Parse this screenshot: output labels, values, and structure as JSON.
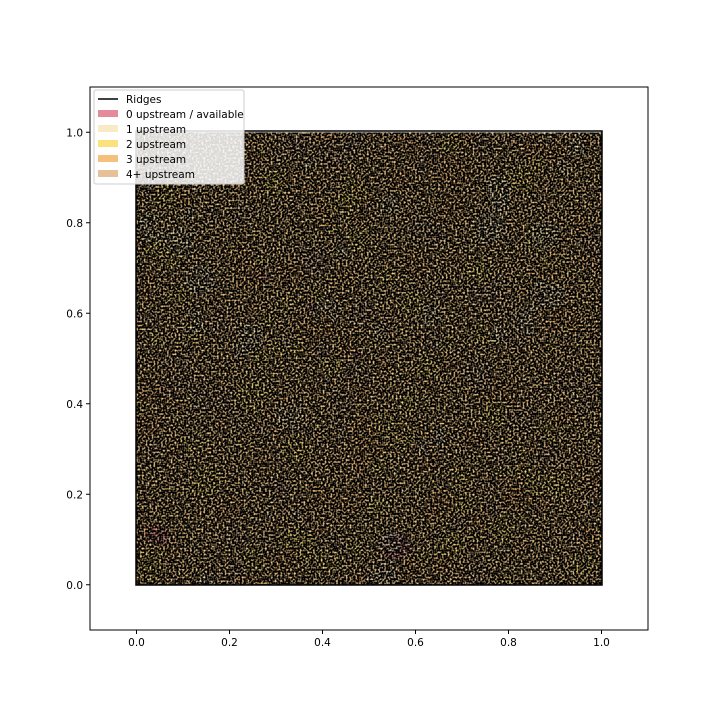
{
  "chart_data": {
    "type": "heatmap",
    "title": "",
    "xlabel": "",
    "ylabel": "",
    "xlim": [
      -0.1,
      1.1
    ],
    "ylim": [
      -0.1,
      1.1
    ],
    "xticks": [
      0.0,
      0.2,
      0.4,
      0.6,
      0.8,
      1.0
    ],
    "yticks": [
      0.0,
      0.2,
      0.4,
      0.6,
      0.8,
      1.0
    ],
    "xtick_labels": [
      "0.0",
      "0.2",
      "0.4",
      "0.6",
      "0.8",
      "1.0"
    ],
    "ytick_labels": [
      "0.0",
      "0.2",
      "0.4",
      "0.6",
      "0.8",
      "1.0"
    ],
    "domain": {
      "x": [
        0,
        1
      ],
      "y": [
        0,
        1
      ]
    },
    "grid": false,
    "legend_position": "top-left",
    "legend": [
      {
        "label": "Ridges",
        "kind": "line",
        "color": "#000000"
      },
      {
        "label": "0 upstream / available",
        "kind": "patch",
        "color": "#e48a9a"
      },
      {
        "label": "1 upstream",
        "kind": "patch",
        "color": "#f6ebc4"
      },
      {
        "label": "2 upstream",
        "kind": "patch",
        "color": "#fbe27c"
      },
      {
        "label": "3 upstream",
        "kind": "patch",
        "color": "#f5c07a"
      },
      {
        "label": "4+ upstream",
        "kind": "patch",
        "color": "#e4c199"
      }
    ],
    "ridge_color": "#000000"
  }
}
